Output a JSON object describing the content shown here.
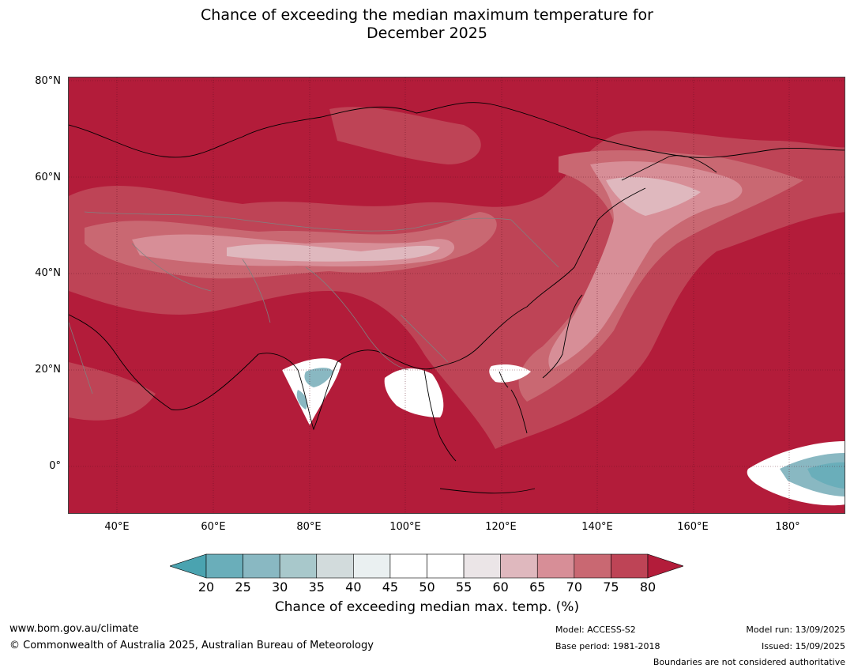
{
  "title_line1": "Chance of exceeding the median maximum temperature for",
  "title_line2": "December 2025",
  "map": {
    "lat_labels": [
      "80°N",
      "60°N",
      "40°N",
      "20°N",
      "0°"
    ],
    "lon_labels": [
      "40°E",
      "60°E",
      "80°E",
      "100°E",
      "120°E",
      "140°E",
      "160°E",
      "180°"
    ],
    "background_color": "#b31c3a",
    "coastline_color": "#000000",
    "border_color": "#808080",
    "grid_color": "#5a1020"
  },
  "colorbar": {
    "ticks": [
      "20",
      "25",
      "30",
      "35",
      "40",
      "45",
      "50",
      "55",
      "60",
      "65",
      "70",
      "75",
      "80"
    ],
    "colors": [
      "#6aaeba",
      "#89b8c2",
      "#a8c8cb",
      "#d2dbdc",
      "#eaf0f1",
      "#ffffff",
      "#ffffff",
      "#ebe5e7",
      "#dfb8be",
      "#d78e97",
      "#c96872",
      "#be4456"
    ],
    "under_color": "#4aa3b0",
    "over_color": "#b31c3a",
    "label": "Chance of exceeding median max. temp. (%)"
  },
  "footer": {
    "website": "www.bom.gov.au/climate",
    "copyright": "© Commonwealth of Australia 2025, Australian Bureau of Meteorology",
    "model": "Model: ACCESS-S2",
    "base_period": "Base period: 1981-2018",
    "model_run": "Model run: 13/09/2025",
    "issued": "Issued: 15/09/2025",
    "disclaimer": "Boundaries are not considered authoritative"
  }
}
